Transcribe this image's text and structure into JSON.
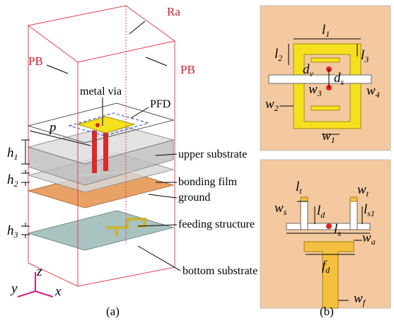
{
  "panel_a": {
    "caption": "(a)",
    "boundary_labels": [
      "Ra",
      "PB",
      "PB"
    ],
    "layer_labels": [
      "metal via",
      "PFD",
      "upper substrate",
      "bonding film",
      "ground",
      "feeding structure",
      "bottom substrate"
    ],
    "dimensions": [
      {
        "base": "p"
      },
      {
        "base": "h",
        "sub": "1"
      },
      {
        "base": "h",
        "sub": "2"
      },
      {
        "base": "h",
        "sub": "3"
      }
    ],
    "axes": [
      "z",
      "y",
      "x"
    ]
  },
  "panel_b": {
    "caption": "(b)",
    "top_dimensions": [
      {
        "base": "l",
        "sub": "1"
      },
      {
        "base": "l",
        "sub": "2"
      },
      {
        "base": "l",
        "sub": "3"
      },
      {
        "base": "d",
        "sub": "v"
      },
      {
        "base": "d",
        "sub": "s"
      },
      {
        "base": "w",
        "sub": "3"
      },
      {
        "base": "w",
        "sub": "4"
      },
      {
        "base": "w",
        "sub": "2"
      },
      {
        "base": "w",
        "sub": "1"
      }
    ],
    "bottom_dimensions": [
      {
        "base": "l",
        "sub": "t"
      },
      {
        "base": "w",
        "sub": "t"
      },
      {
        "base": "w",
        "sub": "s"
      },
      {
        "base": "l",
        "sub": "d"
      },
      {
        "base": "l",
        "sub": "s1"
      },
      {
        "base": "l",
        "sub": "s"
      },
      {
        "base": "w",
        "sub": "a"
      },
      {
        "base": "f",
        "sub": "d"
      },
      {
        "base": "w",
        "sub": "f"
      }
    ]
  }
}
